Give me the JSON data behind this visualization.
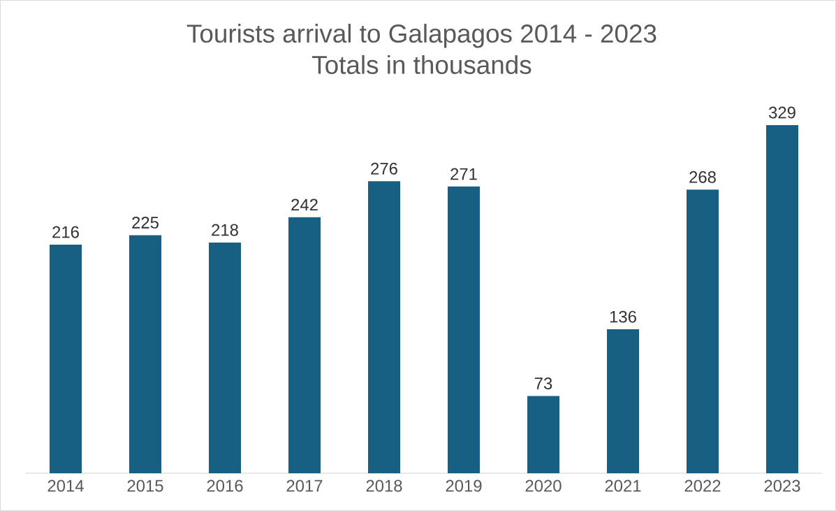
{
  "chart_data": {
    "type": "bar",
    "title": "Tourists arrival to Galapagos 2014 - 2023",
    "subtitle": "Totals in thousands",
    "categories": [
      "2014",
      "2015",
      "2016",
      "2017",
      "2018",
      "2019",
      "2020",
      "2021",
      "2022",
      "2023"
    ],
    "values": [
      216,
      225,
      218,
      242,
      276,
      271,
      73,
      136,
      268,
      329
    ],
    "color": "#176083",
    "data_labels": true
  }
}
